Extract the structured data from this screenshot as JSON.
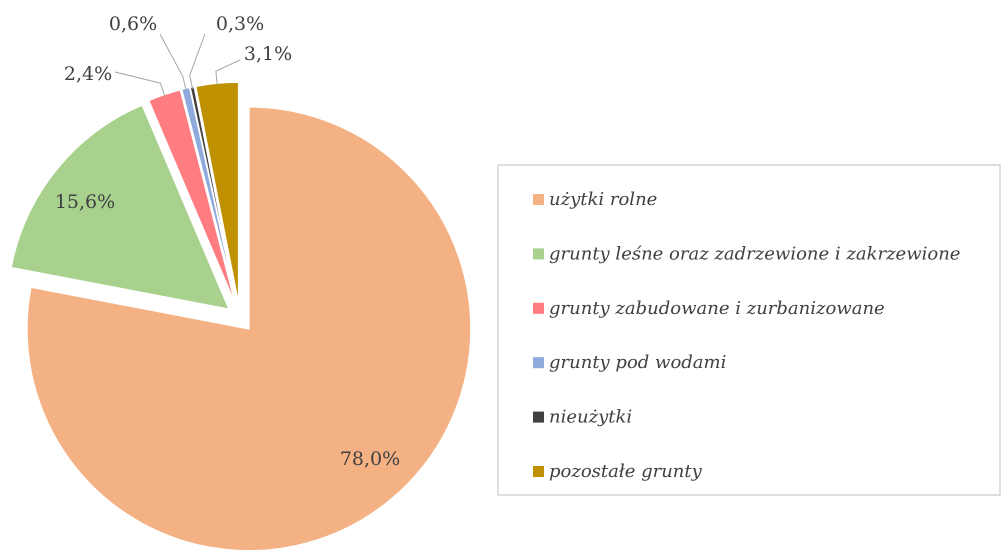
{
  "chart_data": {
    "type": "pie",
    "categories": [
      "użytki rolne",
      "grunty leśne oraz zadrzewione i zakrzewione",
      "grunty zabudowane i zurbanizowane",
      "grunty pod wodami",
      "nieużytki",
      "pozostałe grunty"
    ],
    "values": [
      78.0,
      15.6,
      2.4,
      0.6,
      0.3,
      3.1
    ],
    "value_labels": [
      "78,0%",
      "15,6%",
      "2,4%",
      "0,6%",
      "0,3%",
      "3,1%"
    ],
    "colors": [
      "#f4b183",
      "#a9d18e",
      "#ff7c80",
      "#8faadc",
      "#404040",
      "#bf9000"
    ],
    "legend": "right"
  }
}
